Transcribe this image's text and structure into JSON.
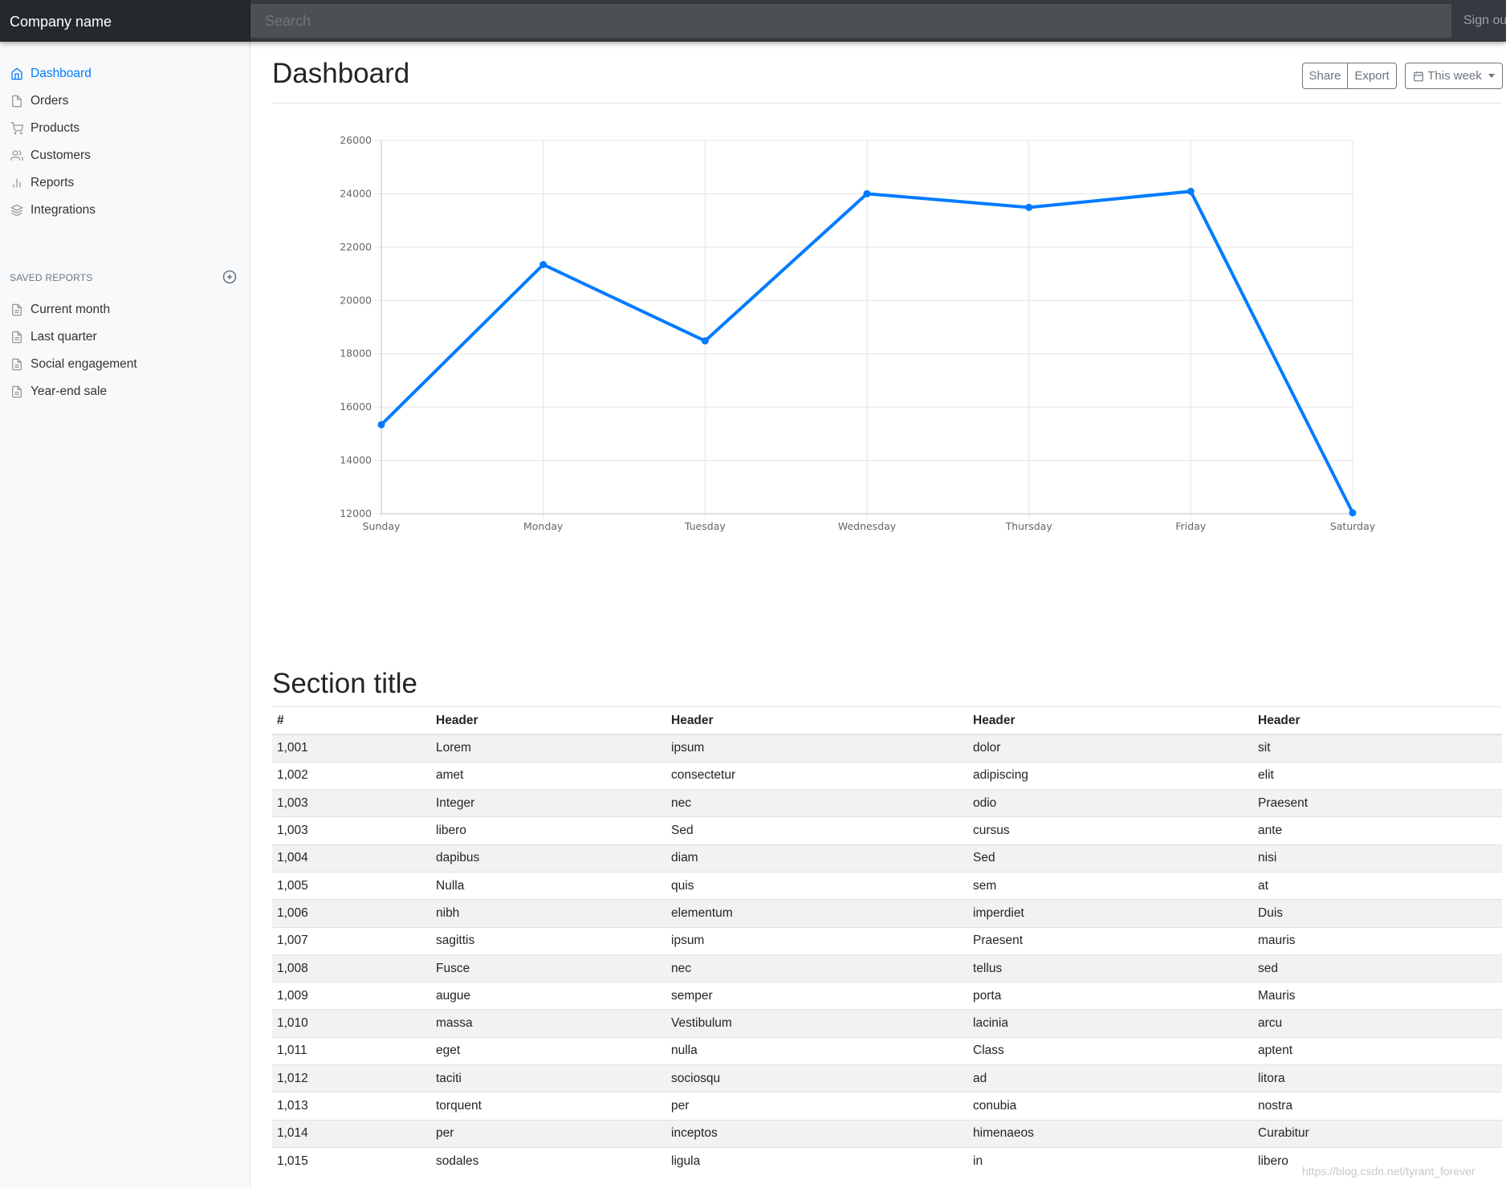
{
  "navbar": {
    "brand": "Company name",
    "search_placeholder": "Search",
    "signout_label": "Sign ou"
  },
  "sidebar": {
    "items": [
      {
        "label": "Dashboard",
        "icon": "home-icon",
        "active": true
      },
      {
        "label": "Orders",
        "icon": "file-icon"
      },
      {
        "label": "Products",
        "icon": "shopping-cart-icon"
      },
      {
        "label": "Customers",
        "icon": "users-icon"
      },
      {
        "label": "Reports",
        "icon": "bar-chart-icon"
      },
      {
        "label": "Integrations",
        "icon": "layers-icon"
      }
    ],
    "saved_heading": "SAVED REPORTS",
    "saved_items": [
      {
        "label": "Current month",
        "icon": "file-text-icon"
      },
      {
        "label": "Last quarter",
        "icon": "file-text-icon"
      },
      {
        "label": "Social engagement",
        "icon": "file-text-icon"
      },
      {
        "label": "Year-end sale",
        "icon": "file-text-icon"
      }
    ]
  },
  "main": {
    "title": "Dashboard",
    "share_label": "Share",
    "export_label": "Export",
    "period_label": "This week",
    "section_title": "Section title"
  },
  "table": {
    "headers": [
      "#",
      "Header",
      "Header",
      "Header",
      "Header"
    ],
    "rows": [
      [
        "1,001",
        "Lorem",
        "ipsum",
        "dolor",
        "sit"
      ],
      [
        "1,002",
        "amet",
        "consectetur",
        "adipiscing",
        "elit"
      ],
      [
        "1,003",
        "Integer",
        "nec",
        "odio",
        "Praesent"
      ],
      [
        "1,003",
        "libero",
        "Sed",
        "cursus",
        "ante"
      ],
      [
        "1,004",
        "dapibus",
        "diam",
        "Sed",
        "nisi"
      ],
      [
        "1,005",
        "Nulla",
        "quis",
        "sem",
        "at"
      ],
      [
        "1,006",
        "nibh",
        "elementum",
        "imperdiet",
        "Duis"
      ],
      [
        "1,007",
        "sagittis",
        "ipsum",
        "Praesent",
        "mauris"
      ],
      [
        "1,008",
        "Fusce",
        "nec",
        "tellus",
        "sed"
      ],
      [
        "1,009",
        "augue",
        "semper",
        "porta",
        "Mauris"
      ],
      [
        "1,010",
        "massa",
        "Vestibulum",
        "lacinia",
        "arcu"
      ],
      [
        "1,011",
        "eget",
        "nulla",
        "Class",
        "aptent"
      ],
      [
        "1,012",
        "taciti",
        "sociosqu",
        "ad",
        "litora"
      ],
      [
        "1,013",
        "torquent",
        "per",
        "conubia",
        "nostra"
      ],
      [
        "1,014",
        "per",
        "inceptos",
        "himenaeos",
        "Curabitur"
      ],
      [
        "1,015",
        "sodales",
        "ligula",
        "in",
        "libero"
      ]
    ]
  },
  "chart_data": {
    "type": "line",
    "categories": [
      "Sunday",
      "Monday",
      "Tuesday",
      "Wednesday",
      "Thursday",
      "Friday",
      "Saturday"
    ],
    "series": [
      {
        "values": [
          15339,
          21345,
          18483,
          24003,
          23489,
          24092,
          12034
        ]
      }
    ],
    "ylim": [
      12000,
      26000
    ],
    "yticks": [
      12000,
      14000,
      16000,
      18000,
      20000,
      22000,
      24000,
      26000
    ],
    "grid": true,
    "legend": "none",
    "line_color": "#007bff"
  },
  "watermark": "https://blog.csdn.net/tyrant_forever"
}
